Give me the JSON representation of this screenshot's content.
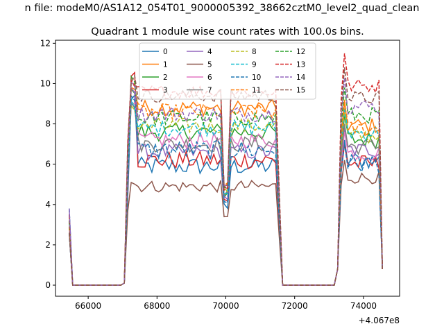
{
  "chart_data": {
    "type": "line",
    "suptitle": "n file: modeM0/AS1A12_054T01_9000005392_38662cztM0_level2_quad_clean",
    "title": "Quadrant 1 module wise count rates with 100.0s bins.",
    "xlabel": "",
    "ylabel": "",
    "x_offset_label": "+4.067e8",
    "xlim": [
      65050,
      75050
    ],
    "ylim": [
      -0.55,
      12.15
    ],
    "xticks": [
      66000,
      68000,
      70000,
      72000,
      74000
    ],
    "xtick_labels": [
      "66000",
      "68000",
      "70000",
      "72000",
      "74000"
    ],
    "yticks": [
      0,
      2,
      4,
      6,
      8,
      10,
      12
    ],
    "ytick_labels": [
      "0",
      "2",
      "4",
      "6",
      "8",
      "10",
      "12"
    ],
    "legend_position": "top-center",
    "legend_columns": 4,
    "series": [
      {
        "name": "0",
        "color": "#1f77b4",
        "dash": "solid",
        "level": 5.9,
        "jitter": 0.45,
        "peak1": 9.6,
        "peak2": 7.2,
        "dip": 3.6
      },
      {
        "name": "1",
        "color": "#ff7f0e",
        "dash": "solid",
        "level": 8.8,
        "jitter": 0.4,
        "peak1": 10.2,
        "peak2": 9.2,
        "dip": 4.6
      },
      {
        "name": "2",
        "color": "#2ca02c",
        "dash": "solid",
        "level": 7.6,
        "jitter": 0.45,
        "peak1": 10.0,
        "peak2": 8.4,
        "dip": 4.3
      },
      {
        "name": "3",
        "color": "#d62728",
        "dash": "solid",
        "level": 6.2,
        "jitter": 0.45,
        "peak1": 10.6,
        "peak2": 7.0,
        "dip": 3.9
      },
      {
        "name": "4",
        "color": "#9467bd",
        "dash": "solid",
        "level": 6.6,
        "jitter": 0.4,
        "peak1": 9.8,
        "peak2": 7.8,
        "dip": 4.1
      },
      {
        "name": "5",
        "color": "#8c564b",
        "dash": "solid",
        "level": 4.9,
        "jitter": 0.3,
        "peak1": 5.3,
        "peak2": 6.2,
        "dip": 3.0
      },
      {
        "name": "6",
        "color": "#e377c2",
        "dash": "solid",
        "level": 7.2,
        "jitter": 0.4,
        "peak1": 9.4,
        "peak2": 7.6,
        "dip": 4.4
      },
      {
        "name": "7",
        "color": "#7f7f7f",
        "dash": "solid",
        "level": 7.0,
        "jitter": 0.4,
        "peak1": 9.1,
        "peak2": 8.0,
        "dip": 4.2
      },
      {
        "name": "8",
        "color": "#bcbd22",
        "dash": "dashed",
        "level": 7.9,
        "jitter": 0.4,
        "peak1": 9.0,
        "peak2": 8.6,
        "dip": 4.5
      },
      {
        "name": "9",
        "color": "#17becf",
        "dash": "dashed",
        "level": 7.8,
        "jitter": 0.4,
        "peak1": 9.3,
        "peak2": 8.8,
        "dip": 4.5
      },
      {
        "name": "10",
        "color": "#1f77b4",
        "dash": "dashed",
        "level": 6.7,
        "jitter": 0.5,
        "peak1": 9.5,
        "peak2": 7.0,
        "dip": 4.0
      },
      {
        "name": "11",
        "color": "#ff7f0e",
        "dash": "dashed",
        "level": 8.6,
        "jitter": 0.4,
        "peak1": 10.0,
        "peak2": 9.0,
        "dip": 4.6
      },
      {
        "name": "12",
        "color": "#2ca02c",
        "dash": "dashed",
        "level": 8.3,
        "jitter": 0.4,
        "peak1": 10.4,
        "peak2": 9.8,
        "dip": 4.5
      },
      {
        "name": "13",
        "color": "#d62728",
        "dash": "dashed",
        "level": 9.6,
        "jitter": 0.35,
        "peak1": 10.4,
        "peak2": 11.5,
        "dip": 4.7
      },
      {
        "name": "14",
        "color": "#9467bd",
        "dash": "dashed",
        "level": 8.5,
        "jitter": 0.4,
        "peak1": 10.1,
        "peak2": 10.3,
        "dip": 4.6
      },
      {
        "name": "15",
        "color": "#8c564b",
        "dash": "dashed",
        "level": 9.4,
        "jitter": 0.35,
        "peak1": 10.5,
        "peak2": 10.8,
        "dip": 4.7
      }
    ]
  }
}
